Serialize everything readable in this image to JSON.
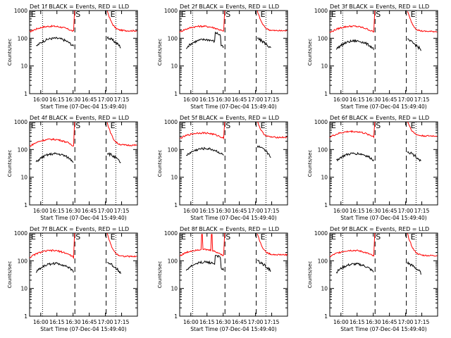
{
  "chart_data": {
    "type": "line",
    "panel_count": 9,
    "y_axis_scale": "log",
    "ylim": [
      1,
      1000
    ],
    "y_ticks": [
      "1",
      "10",
      "100",
      "1000"
    ],
    "ylabel": "Counts/sec",
    "xlabel": "Start Time (07-Dec-04 15:49:40)",
    "x_ticks": [
      "16:00",
      "16:15",
      "16:30",
      "16:45",
      "17:00",
      "17:15"
    ],
    "colors": {
      "events": "#000000",
      "lld": "#ff0000",
      "axes": "#000000"
    },
    "markers": {
      "S": "S",
      "E": "E"
    },
    "panels": [
      {
        "title": "Det 1f BLACK = Events, RED = LLD",
        "lld_level": 170,
        "event_level": 50,
        "event_bump": 2.0,
        "lld_bump": 1.6,
        "spike": null
      },
      {
        "title": "Det 2f BLACK = Events, RED = LLD",
        "lld_level": 170,
        "event_level": 45,
        "event_bump": 2.0,
        "lld_bump": 1.6,
        "spike": "event"
      },
      {
        "title": "Det 3f BLACK = Events, RED = LLD",
        "lld_level": 160,
        "event_level": 40,
        "event_bump": 2.0,
        "lld_bump": 1.7,
        "spike": null
      },
      {
        "title": "Det 4f BLACK = Events, RED = LLD",
        "lld_level": 130,
        "event_level": 35,
        "event_bump": 2.0,
        "lld_bump": 1.8,
        "spike": null
      },
      {
        "title": "Det 5f BLACK = Events, RED = LLD",
        "lld_level": 250,
        "event_level": 60,
        "event_bump": 1.8,
        "lld_bump": 1.6,
        "spike": null
      },
      {
        "title": "Det 6f BLACK = Events, RED = LLD",
        "lld_level": 280,
        "event_level": 40,
        "event_bump": 1.8,
        "lld_bump": 1.6,
        "spike": null
      },
      {
        "title": "Det 7f BLACK = Events, RED = LLD",
        "lld_level": 130,
        "event_level": 40,
        "event_bump": 2.0,
        "lld_bump": 1.8,
        "spike": null
      },
      {
        "title": "Det 8f BLACK = Events, RED = LLD",
        "lld_level": 150,
        "event_level": 45,
        "event_bump": 2.0,
        "lld_bump": 1.7,
        "spike": "both"
      },
      {
        "title": "Det 9f BLACK = Events, RED = LLD",
        "lld_level": 140,
        "event_level": 38,
        "event_bump": 2.0,
        "lld_bump": 1.7,
        "spike": null
      }
    ]
  }
}
